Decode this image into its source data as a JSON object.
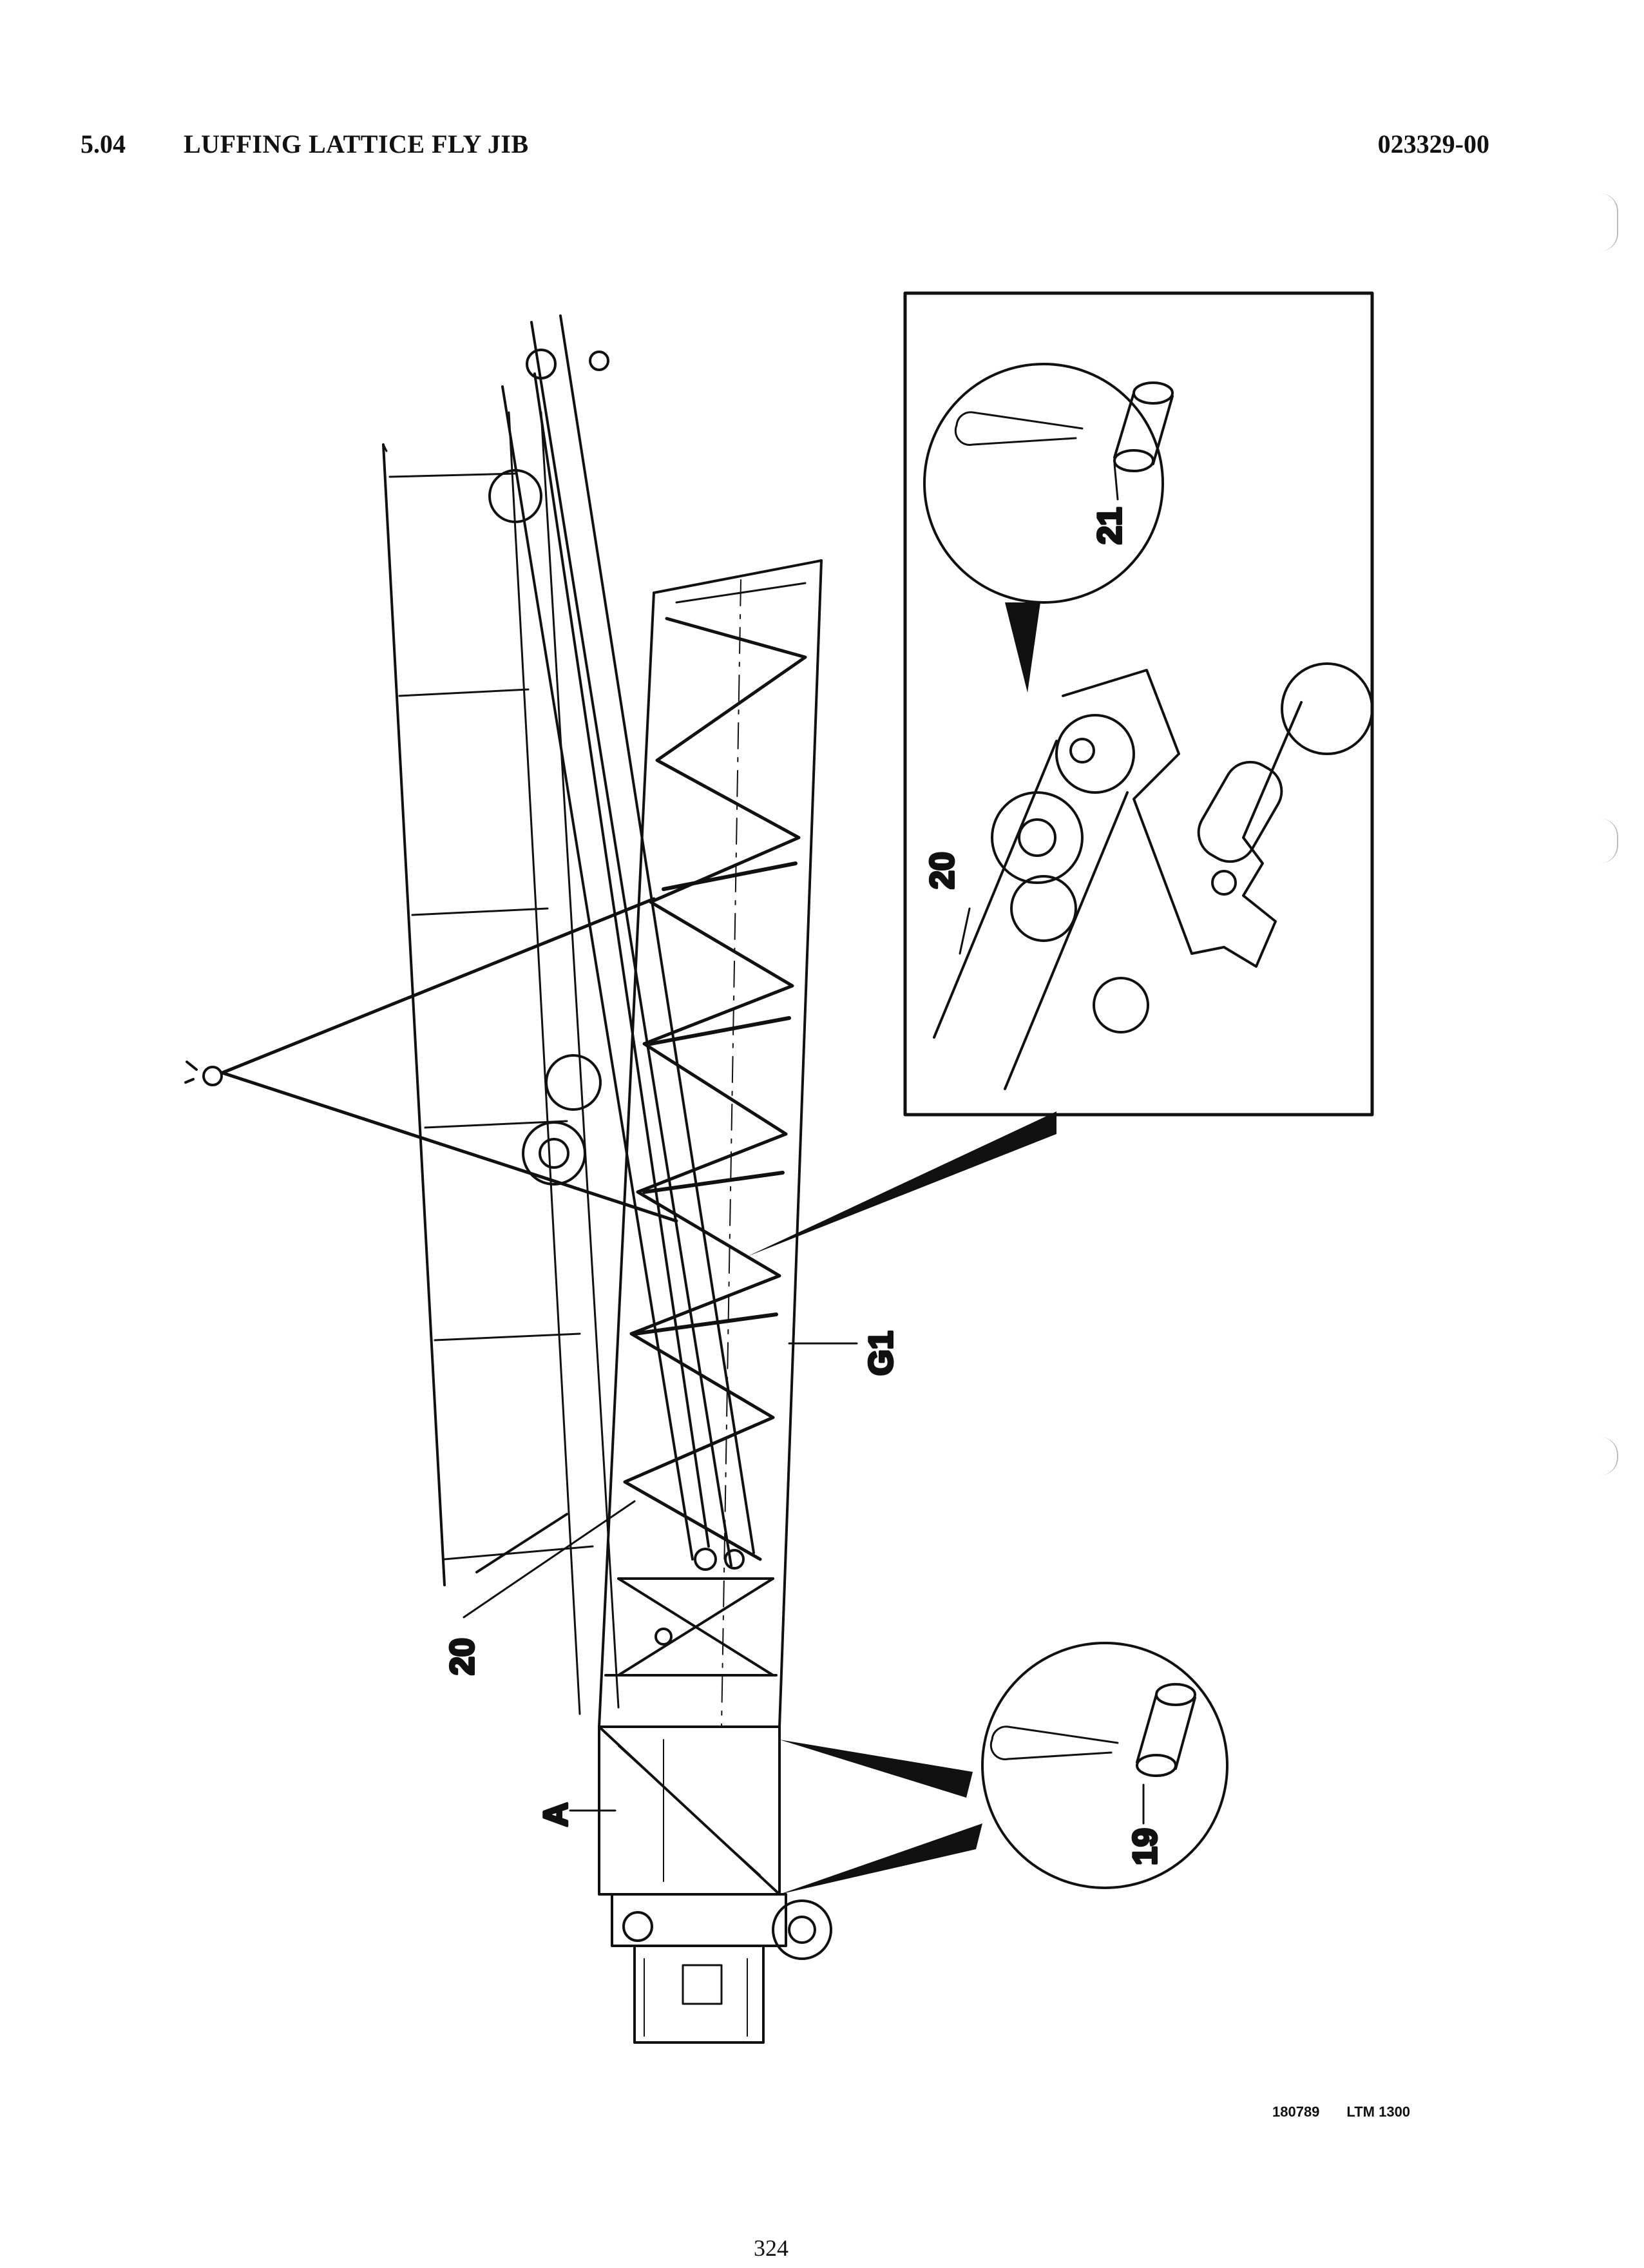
{
  "header": {
    "section_number": "5.04",
    "section_title": "LUFFING LATTICE FLY JIB",
    "document_number": "023329-00"
  },
  "figure": {
    "callouts": {
      "pin_21": "21",
      "part_20_detail": "20",
      "part_20_main": "20",
      "g1": "G1",
      "pin_19": "19",
      "a": "A"
    }
  },
  "footer": {
    "drawing_ref": "180789",
    "model": "LTM 1300",
    "page_number": "324"
  },
  "colors": {
    "ink": "#111111",
    "paper": "#ffffff"
  }
}
